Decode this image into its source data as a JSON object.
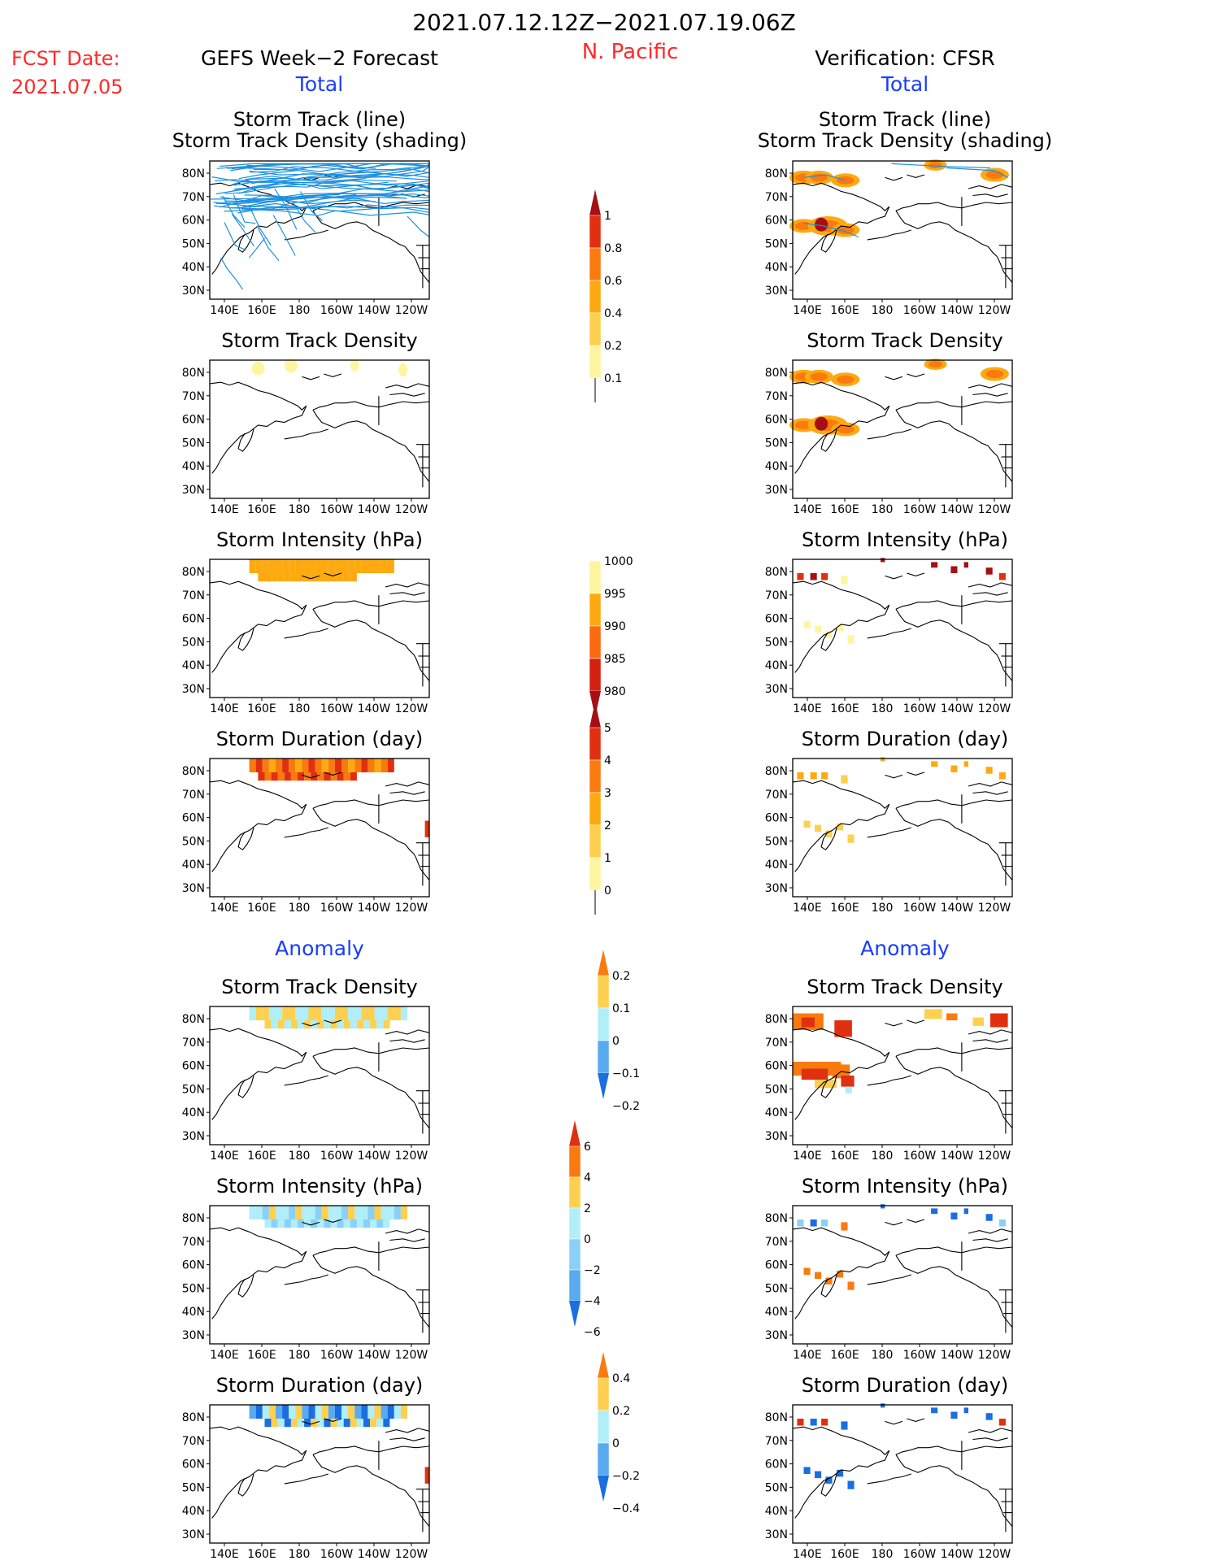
{
  "header": {
    "date_range": "2021.07.12.12Z−2021.07.19.06Z",
    "region": "N. Pacific",
    "fcst_label": "FCST Date:",
    "fcst_date": "2021.07.05",
    "left_title": "GEFS Week−2 Forecast",
    "right_title": "Verification: CFSR",
    "section_total": "Total",
    "section_anomaly": "Anomaly"
  },
  "colors": {
    "red_text": "#ff2a2a",
    "blue_text": "#1a3cff",
    "track_line": "#1e90e0"
  },
  "axes": {
    "lat_ticks": [
      "80N",
      "70N",
      "60N",
      "50N",
      "40N",
      "30N"
    ],
    "lon_ticks": [
      "140E",
      "160E",
      "180",
      "160W",
      "140W",
      "120W"
    ]
  },
  "panel_titles": {
    "track": [
      "Storm Track (line)",
      "Storm Track Density (shading)"
    ],
    "density": "Storm Track Density",
    "intensity": "Storm Intensity (hPa)",
    "duration": "Storm Duration (day)"
  },
  "colorbars": [
    {
      "name": "density",
      "labels": [
        "1",
        "0.8",
        "0.6",
        "0.4",
        "0.2",
        "0.1"
      ],
      "colors": [
        "#a50f15",
        "#e03010",
        "#fb7a10",
        "#fdaa10",
        "#fed050",
        "#fff5a0"
      ],
      "top_arrow": true,
      "bottom_arrow": false
    },
    {
      "name": "intensity",
      "labels": [
        "1000",
        "995",
        "990",
        "985",
        "980"
      ],
      "colors": [
        "#fff5a0",
        "#fdaa10",
        "#fb6a10",
        "#d42010",
        "#a50f15"
      ],
      "top_arrow": false,
      "bottom_arrow": true
    },
    {
      "name": "duration",
      "labels": [
        "5",
        "4",
        "3",
        "2",
        "1",
        "0"
      ],
      "colors": [
        "#a50f15",
        "#e03010",
        "#fb7a10",
        "#fdaa10",
        "#fed050",
        "#fff5a0"
      ],
      "top_arrow": true,
      "bottom_arrow": false
    },
    {
      "name": "anom_density",
      "labels": [
        "0.2",
        "0.1",
        "0",
        "−0.1",
        "−0.2"
      ],
      "colors": [
        "#fb7a10",
        "#fed050",
        "#b0eef8",
        "#5aaaf0",
        "#1a6ee0"
      ],
      "top_arrow": true,
      "bottom_arrow": true
    },
    {
      "name": "anom_intensity",
      "labels": [
        "6",
        "4",
        "2",
        "0",
        "−2",
        "−4",
        "−6"
      ],
      "colors": [
        "#e03010",
        "#fb7a10",
        "#fed050",
        "#b0eef8",
        "#8ad0f8",
        "#5aaaf0",
        "#1a6ee0"
      ],
      "top_arrow": true,
      "bottom_arrow": true
    },
    {
      "name": "anom_duration",
      "labels": [
        "0.4",
        "0.2",
        "0",
        "−0.2",
        "−0.4"
      ],
      "colors": [
        "#fb7a10",
        "#fed050",
        "#b0eef8",
        "#5aaaf0",
        "#1a6ee0"
      ],
      "top_arrow": true,
      "bottom_arrow": true
    }
  ]
}
